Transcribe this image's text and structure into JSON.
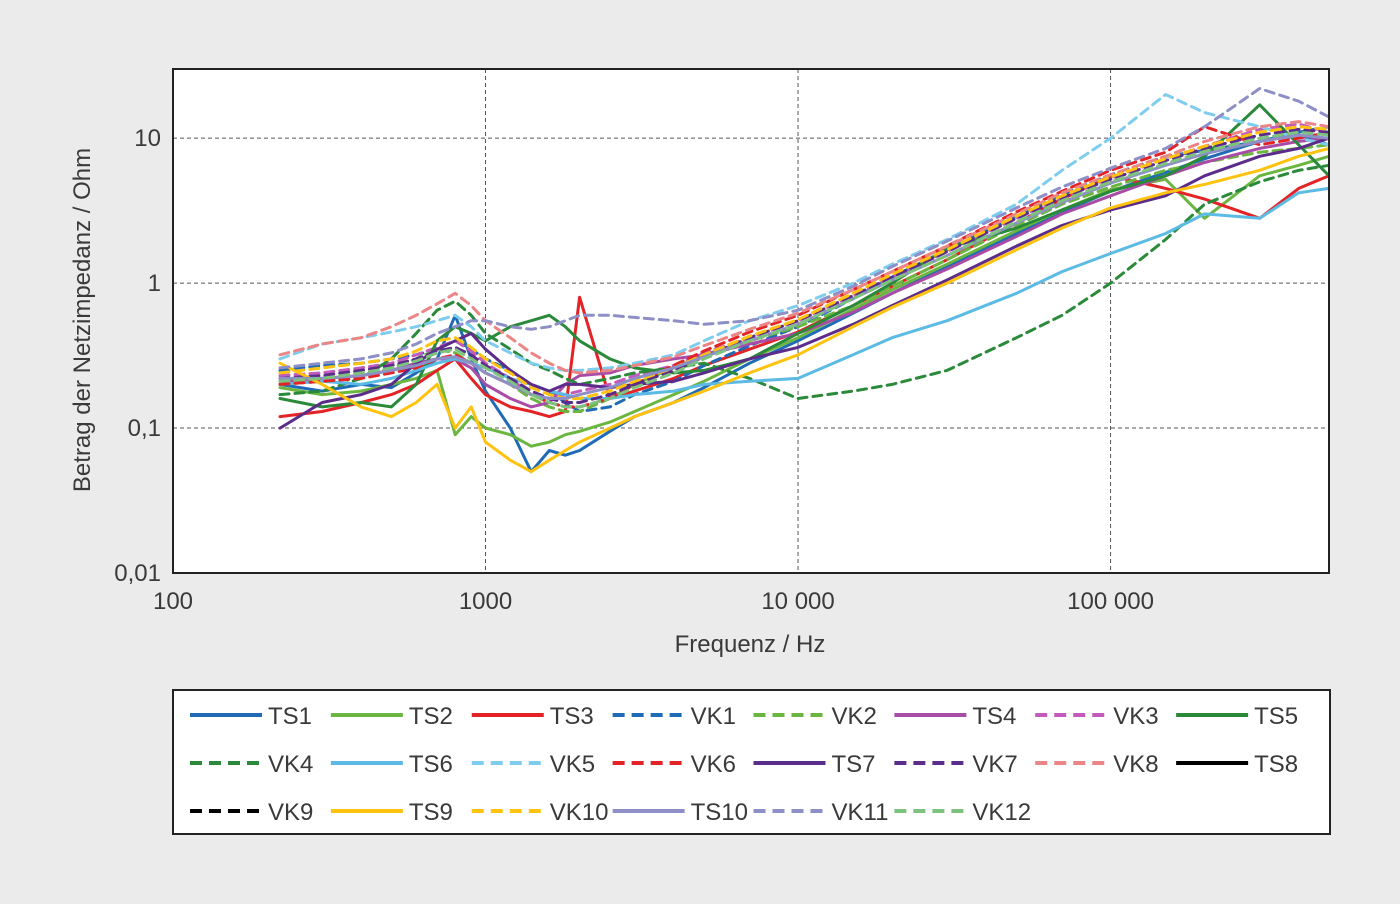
{
  "chart_data": {
    "type": "line",
    "title": "",
    "xlabel": "Frequenz / Hz",
    "ylabel": "Betrag der Netzimpedanz / Ohm",
    "x_scale": "log",
    "y_scale": "log",
    "xlim": [
      100,
      500000
    ],
    "ylim": [
      0.01,
      30
    ],
    "x_ticks": [
      {
        "value": 100,
        "label": "100"
      },
      {
        "value": 1000,
        "label": "1000"
      },
      {
        "value": 10000,
        "label": "10 000"
      },
      {
        "value": 100000,
        "label": "100 000"
      }
    ],
    "y_ticks": [
      {
        "value": 0.01,
        "label": "0,01"
      },
      {
        "value": 0.1,
        "label": "0,1"
      },
      {
        "value": 1,
        "label": "1"
      },
      {
        "value": 10,
        "label": "10"
      }
    ],
    "grid": true,
    "legend_position": "bottom",
    "x": [
      220,
      300,
      400,
      500,
      600,
      700,
      800,
      900,
      1000,
      1200,
      1400,
      1600,
      1800,
      2000,
      2500,
      3000,
      4000,
      5000,
      7000,
      10000,
      15000,
      20000,
      30000,
      50000,
      70000,
      100000,
      150000,
      200000,
      300000,
      400000,
      500000
    ],
    "series": [
      {
        "name": "TS1",
        "color": "#1f6bb5",
        "dash": "solid",
        "values": [
          0.2,
          0.18,
          0.2,
          0.19,
          0.24,
          0.3,
          0.6,
          0.3,
          0.18,
          0.1,
          0.05,
          0.07,
          0.065,
          0.07,
          0.095,
          0.12,
          0.15,
          0.19,
          0.28,
          0.4,
          0.62,
          0.85,
          1.3,
          2.2,
          3.1,
          4.3,
          5.8,
          7.2,
          9.5,
          10.5,
          9.0
        ]
      },
      {
        "name": "TS2",
        "color": "#6bb640",
        "dash": "solid",
        "values": [
          0.19,
          0.17,
          0.18,
          0.2,
          0.22,
          0.25,
          0.09,
          0.12,
          0.1,
          0.09,
          0.075,
          0.08,
          0.09,
          0.095,
          0.11,
          0.13,
          0.17,
          0.21,
          0.3,
          0.42,
          0.66,
          0.9,
          1.35,
          2.3,
          3.2,
          4.4,
          5.2,
          2.8,
          5.5,
          6.5,
          7.5
        ]
      },
      {
        "name": "TS3",
        "color": "#e32326",
        "dash": "solid",
        "values": [
          0.12,
          0.13,
          0.15,
          0.17,
          0.2,
          0.25,
          0.3,
          0.22,
          0.17,
          0.14,
          0.13,
          0.12,
          0.13,
          0.8,
          0.16,
          0.18,
          0.22,
          0.27,
          0.35,
          0.46,
          0.7,
          0.95,
          1.45,
          2.6,
          3.8,
          5.5,
          4.5,
          3.8,
          2.8,
          4.5,
          5.5
        ]
      },
      {
        "name": "VK1",
        "color": "#1f6bb5",
        "dash": "dashed",
        "values": [
          0.25,
          0.27,
          0.28,
          0.3,
          0.32,
          0.35,
          0.4,
          0.35,
          0.3,
          0.25,
          0.2,
          0.18,
          0.15,
          0.13,
          0.14,
          0.17,
          0.21,
          0.27,
          0.37,
          0.5,
          0.78,
          1.1,
          1.7,
          2.9,
          4.1,
          5.6,
          7.5,
          8.2,
          9.5,
          11.0,
          12.0
        ]
      },
      {
        "name": "VK2",
        "color": "#6bb640",
        "dash": "dashed",
        "values": [
          0.2,
          0.21,
          0.23,
          0.26,
          0.3,
          0.35,
          0.33,
          0.28,
          0.24,
          0.2,
          0.16,
          0.14,
          0.13,
          0.13,
          0.16,
          0.2,
          0.26,
          0.32,
          0.4,
          0.5,
          0.7,
          0.95,
          1.45,
          2.5,
          3.5,
          4.6,
          6.0,
          6.8,
          8.0,
          8.5,
          9.0
        ]
      },
      {
        "name": "TS4",
        "color": "#a94ca6",
        "dash": "solid",
        "values": [
          0.21,
          0.22,
          0.23,
          0.25,
          0.28,
          0.3,
          0.3,
          0.26,
          0.2,
          0.16,
          0.14,
          0.15,
          0.2,
          0.23,
          0.24,
          0.27,
          0.3,
          0.32,
          0.38,
          0.45,
          0.63,
          0.85,
          1.25,
          2.1,
          3.0,
          4.0,
          5.5,
          6.8,
          8.5,
          9.5,
          10.0
        ]
      },
      {
        "name": "VK3",
        "color": "#c25bbb",
        "dash": "dashed",
        "values": [
          0.23,
          0.24,
          0.26,
          0.28,
          0.32,
          0.36,
          0.4,
          0.34,
          0.28,
          0.22,
          0.17,
          0.16,
          0.17,
          0.18,
          0.2,
          0.23,
          0.27,
          0.33,
          0.42,
          0.55,
          0.82,
          1.1,
          1.65,
          2.8,
          3.9,
          5.3,
          7.2,
          8.8,
          11.5,
          12.5,
          11.0
        ]
      },
      {
        "name": "TS5",
        "color": "#2a8a3a",
        "dash": "solid",
        "values": [
          0.16,
          0.14,
          0.15,
          0.14,
          0.2,
          0.4,
          0.5,
          0.45,
          0.4,
          0.5,
          0.55,
          0.6,
          0.5,
          0.4,
          0.3,
          0.26,
          0.24,
          0.25,
          0.3,
          0.45,
          0.7,
          1.0,
          1.75,
          2.4,
          3.2,
          4.3,
          5.5,
          7.5,
          17.0,
          9.0,
          5.5
        ]
      },
      {
        "name": "VK4",
        "color": "#2a8a3a",
        "dash": "dashed",
        "values": [
          0.17,
          0.18,
          0.22,
          0.3,
          0.45,
          0.65,
          0.75,
          0.6,
          0.45,
          0.35,
          0.28,
          0.25,
          0.22,
          0.2,
          0.22,
          0.24,
          0.26,
          0.28,
          0.22,
          0.16,
          0.18,
          0.2,
          0.25,
          0.42,
          0.6,
          1.0,
          2.0,
          3.5,
          5.0,
          6.0,
          6.5
        ]
      },
      {
        "name": "TS6",
        "color": "#5bbbe4",
        "dash": "solid",
        "values": [
          0.2,
          0.21,
          0.2,
          0.22,
          0.25,
          0.28,
          0.3,
          0.28,
          0.26,
          0.22,
          0.2,
          0.18,
          0.17,
          0.16,
          0.16,
          0.17,
          0.18,
          0.2,
          0.21,
          0.22,
          0.32,
          0.42,
          0.55,
          0.85,
          1.2,
          1.6,
          2.2,
          3.0,
          2.8,
          4.2,
          4.5
        ]
      },
      {
        "name": "VK5",
        "color": "#7fcdee",
        "dash": "dashed",
        "values": [
          0.3,
          0.38,
          0.42,
          0.46,
          0.5,
          0.55,
          0.6,
          0.5,
          0.4,
          0.33,
          0.28,
          0.26,
          0.25,
          0.25,
          0.26,
          0.28,
          0.32,
          0.4,
          0.55,
          0.7,
          1.0,
          1.35,
          2.0,
          3.5,
          6.0,
          10.0,
          20.0,
          15.0,
          12.0,
          10.0,
          9.0
        ]
      },
      {
        "name": "VK6",
        "color": "#e32326",
        "dash": "dashed",
        "values": [
          0.2,
          0.21,
          0.22,
          0.24,
          0.26,
          0.3,
          0.32,
          0.28,
          0.24,
          0.2,
          0.17,
          0.15,
          0.14,
          0.14,
          0.16,
          0.2,
          0.27,
          0.34,
          0.46,
          0.6,
          0.9,
          1.2,
          1.8,
          3.1,
          4.3,
          6.0,
          8.0,
          12.0,
          9.0,
          10.0,
          11.0
        ]
      },
      {
        "name": "TS7",
        "color": "#5b2c8a",
        "dash": "solid",
        "values": [
          0.1,
          0.15,
          0.17,
          0.2,
          0.28,
          0.35,
          0.4,
          0.45,
          0.35,
          0.25,
          0.2,
          0.18,
          0.2,
          0.2,
          0.19,
          0.2,
          0.21,
          0.24,
          0.3,
          0.36,
          0.52,
          0.7,
          1.05,
          1.8,
          2.5,
          3.2,
          4.0,
          5.5,
          7.5,
          8.5,
          10.0
        ]
      },
      {
        "name": "VK7",
        "color": "#5b2c8a",
        "dash": "dashed",
        "values": [
          0.22,
          0.23,
          0.25,
          0.27,
          0.3,
          0.34,
          0.36,
          0.32,
          0.27,
          0.22,
          0.18,
          0.16,
          0.15,
          0.15,
          0.17,
          0.2,
          0.25,
          0.31,
          0.42,
          0.55,
          0.82,
          1.1,
          1.65,
          2.8,
          3.9,
          5.2,
          7.0,
          8.5,
          10.5,
          11.5,
          11.0
        ]
      },
      {
        "name": "VK8",
        "color": "#ec8586",
        "dash": "dashed",
        "values": [
          0.32,
          0.38,
          0.42,
          0.5,
          0.6,
          0.72,
          0.85,
          0.7,
          0.55,
          0.42,
          0.33,
          0.28,
          0.25,
          0.24,
          0.25,
          0.27,
          0.31,
          0.37,
          0.48,
          0.62,
          0.9,
          1.2,
          1.8,
          3.0,
          4.2,
          5.6,
          7.5,
          9.5,
          12.0,
          13.0,
          12.0
        ]
      },
      {
        "name": "TS8",
        "color": "#000000",
        "dash": "solid",
        "values": null
      },
      {
        "name": "VK9",
        "color": "#000000",
        "dash": "dashed",
        "values": null
      },
      {
        "name": "TS9",
        "color": "#ffc20e",
        "dash": "solid",
        "values": [
          0.28,
          0.2,
          0.14,
          0.12,
          0.15,
          0.2,
          0.1,
          0.14,
          0.08,
          0.06,
          0.05,
          0.06,
          0.07,
          0.08,
          0.1,
          0.12,
          0.15,
          0.18,
          0.24,
          0.32,
          0.5,
          0.68,
          1.0,
          1.7,
          2.4,
          3.3,
          4.2,
          4.8,
          6.0,
          7.5,
          8.5
        ]
      },
      {
        "name": "VK10",
        "color": "#ffc20e",
        "dash": "dashed",
        "values": [
          0.24,
          0.26,
          0.28,
          0.3,
          0.34,
          0.4,
          0.42,
          0.36,
          0.3,
          0.24,
          0.19,
          0.17,
          0.16,
          0.16,
          0.18,
          0.21,
          0.26,
          0.32,
          0.43,
          0.56,
          0.85,
          1.15,
          1.7,
          2.9,
          4.0,
          5.4,
          7.2,
          8.8,
          11.0,
          12.0,
          11.5
        ]
      },
      {
        "name": "TS10",
        "color": "#8d8fc6",
        "dash": "solid",
        "values": [
          0.22,
          0.22,
          0.23,
          0.25,
          0.27,
          0.3,
          0.31,
          0.28,
          0.24,
          0.2,
          0.17,
          0.16,
          0.16,
          0.17,
          0.19,
          0.22,
          0.26,
          0.31,
          0.4,
          0.52,
          0.78,
          1.05,
          1.55,
          2.6,
          3.6,
          4.9,
          6.5,
          7.8,
          9.5,
          10.5,
          10.0
        ]
      },
      {
        "name": "VK11",
        "color": "#8d8fc6",
        "dash": "dashed",
        "values": [
          0.26,
          0.28,
          0.3,
          0.33,
          0.38,
          0.45,
          0.5,
          0.55,
          0.55,
          0.5,
          0.48,
          0.5,
          0.55,
          0.6,
          0.6,
          0.58,
          0.55,
          0.52,
          0.55,
          0.65,
          0.95,
          1.3,
          1.95,
          3.3,
          4.6,
          6.2,
          8.5,
          12.0,
          22.0,
          18.0,
          14.0
        ]
      },
      {
        "name": "VK12",
        "color": "#7dc27e",
        "dash": "dashed",
        "values": [
          0.21,
          0.22,
          0.24,
          0.26,
          0.29,
          0.33,
          0.35,
          0.3,
          0.26,
          0.21,
          0.17,
          0.15,
          0.14,
          0.14,
          0.16,
          0.19,
          0.24,
          0.3,
          0.4,
          0.52,
          0.78,
          1.05,
          1.55,
          2.65,
          3.7,
          5.0,
          6.7,
          8.1,
          10.0,
          11.0,
          10.5
        ]
      }
    ]
  }
}
